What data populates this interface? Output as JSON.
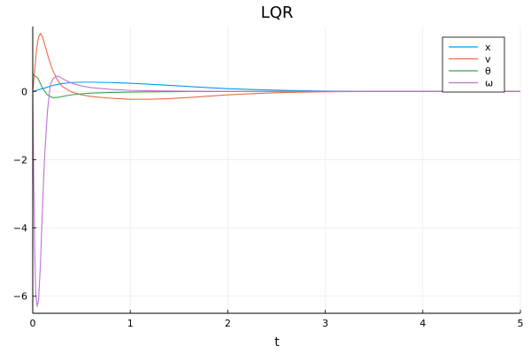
{
  "chart_data": {
    "type": "line",
    "title": "LQR",
    "xlabel": "t",
    "ylabel": "",
    "xlim": [
      0,
      5
    ],
    "ylim": [
      -6.5,
      1.9
    ],
    "x_ticks": [
      0,
      1,
      2,
      3,
      4,
      5
    ],
    "y_ticks": [
      -6,
      -4,
      -2,
      0
    ],
    "grid": true,
    "legend_position": "top-right",
    "series": [
      {
        "name": "x",
        "color": "#009AFA",
        "x": [
          0,
          0.1,
          0.2,
          0.3,
          0.4,
          0.5,
          0.6,
          0.8,
          1.0,
          1.2,
          1.5,
          1.8,
          2.0,
          2.3,
          2.6,
          3.0,
          3.5,
          4.0,
          4.5,
          5.0
        ],
        "y": [
          0,
          0.08,
          0.17,
          0.23,
          0.26,
          0.27,
          0.27,
          0.26,
          0.24,
          0.21,
          0.16,
          0.11,
          0.08,
          0.05,
          0.03,
          0.01,
          0.0,
          0.0,
          0.0,
          0.0
        ]
      },
      {
        "name": "v",
        "color": "#E36F47",
        "x": [
          0,
          0.02,
          0.04,
          0.06,
          0.08,
          0.1,
          0.13,
          0.16,
          0.2,
          0.25,
          0.3,
          0.4,
          0.5,
          0.6,
          0.8,
          1.0,
          1.2,
          1.4,
          1.6,
          1.8,
          2.0,
          2.3,
          2.6,
          3.0,
          3.5,
          4.0,
          4.5,
          5.0
        ],
        "y": [
          0,
          0.6,
          1.25,
          1.6,
          1.7,
          1.6,
          1.3,
          1.0,
          0.65,
          0.35,
          0.15,
          -0.02,
          -0.1,
          -0.15,
          -0.2,
          -0.23,
          -0.23,
          -0.21,
          -0.18,
          -0.14,
          -0.1,
          -0.06,
          -0.03,
          -0.01,
          0.0,
          0.0,
          0.0,
          0.0
        ]
      },
      {
        "name": "θ",
        "color": "#3EA44E",
        "x": [
          0,
          0.05,
          0.1,
          0.15,
          0.2,
          0.25,
          0.3,
          0.4,
          0.5,
          0.6,
          0.8,
          1.0,
          1.3,
          1.6,
          2.0,
          2.5,
          3.0,
          3.5,
          4.0,
          5.0
        ],
        "y": [
          0.5,
          0.4,
          0.1,
          -0.1,
          -0.18,
          -0.18,
          -0.15,
          -0.1,
          -0.07,
          -0.05,
          -0.03,
          -0.02,
          -0.01,
          -0.005,
          0.0,
          0.0,
          0.0,
          0.0,
          0.0,
          0.0
        ]
      },
      {
        "name": "ω",
        "color": "#C271D2",
        "x": [
          0,
          0.01,
          0.02,
          0.03,
          0.045,
          0.06,
          0.08,
          0.1,
          0.12,
          0.15,
          0.18,
          0.21,
          0.25,
          0.28,
          0.32,
          0.37,
          0.42,
          0.5,
          0.6,
          0.8,
          1.0,
          1.3,
          1.6,
          2.0,
          2.5,
          3.0,
          3.5,
          4.0,
          5.0
        ],
        "y": [
          0,
          -2.5,
          -4.6,
          -5.9,
          -6.3,
          -6.1,
          -5.0,
          -3.4,
          -2.0,
          -0.6,
          0.2,
          0.38,
          0.45,
          0.42,
          0.35,
          0.28,
          0.22,
          0.16,
          0.11,
          0.06,
          0.03,
          0.015,
          0.005,
          0.0,
          0.0,
          0.0,
          0.0,
          0.0,
          0.0
        ]
      }
    ]
  }
}
